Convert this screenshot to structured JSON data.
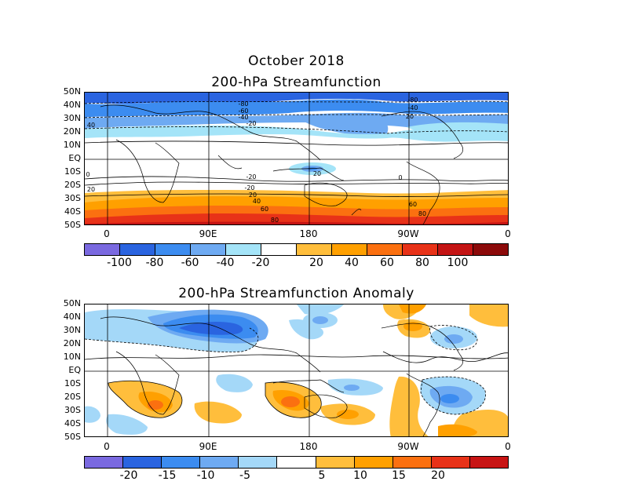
{
  "header": {
    "month": "October 2018"
  },
  "panel1": {
    "title": "200-hPa Streamfunction",
    "colorbar": {
      "colors": [
        "#7a69e0",
        "#2a64e0",
        "#3c8cf0",
        "#6eaaf2",
        "#a4e4f8",
        "#ffffff",
        "#ffbe3c",
        "#ffa000",
        "#fb7010",
        "#e83218",
        "#c41414",
        "#8c0a0a"
      ],
      "labels": [
        "-100",
        "-80",
        "-60",
        "-40",
        "-20",
        "20",
        "40",
        "60",
        "80",
        "100"
      ]
    },
    "contour_labels": [
      "-80",
      "-60",
      "-40",
      "-20",
      "-80",
      "-40",
      "40",
      "20",
      "20",
      "0",
      "0",
      "-20",
      "20",
      "-20",
      "20",
      "40",
      "60",
      "80",
      "60",
      "80"
    ]
  },
  "panel2": {
    "title": "200-hPa Streamfunction Anomaly",
    "colorbar": {
      "colors": [
        "#7a69e0",
        "#2a64e0",
        "#3c8cf0",
        "#6eaaf2",
        "#a4d8f8",
        "#ffffff",
        "#ffbe3c",
        "#ffa000",
        "#fb7010",
        "#e83218",
        "#c81414"
      ],
      "labels": [
        "-20",
        "-15",
        "-10",
        "-5",
        "5",
        "10",
        "15",
        "20"
      ]
    }
  },
  "axes": {
    "lat_labels": [
      "50N",
      "40N",
      "30N",
      "20N",
      "10N",
      "EQ",
      "10S",
      "20S",
      "30S",
      "40S",
      "50S"
    ],
    "lon_labels": [
      "0",
      "90E",
      "180",
      "90W",
      "0"
    ]
  }
}
